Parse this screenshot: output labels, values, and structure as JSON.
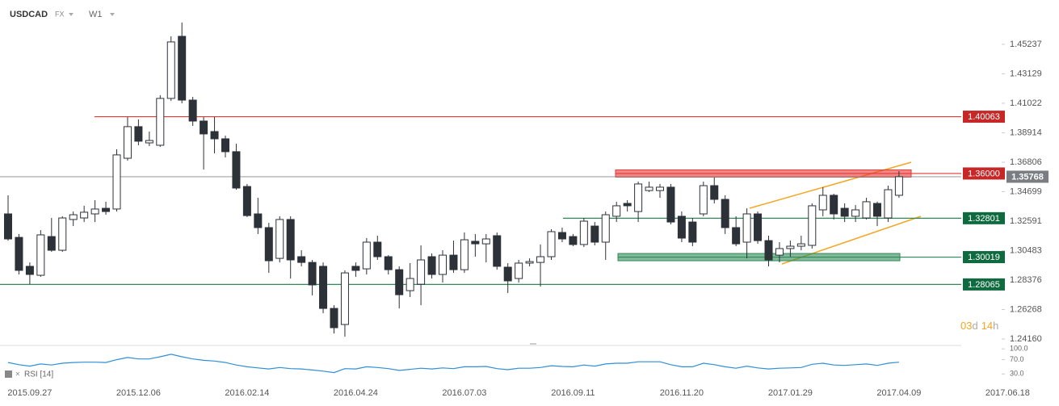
{
  "chart_data": {
    "type": "candlestick",
    "symbol": "USDCAD",
    "market": "FX",
    "timeframe": "W1",
    "countdown": [
      "03",
      "d",
      "14",
      "h"
    ],
    "categories": [
      null,
      null,
      "2015.09.27",
      null,
      null,
      null,
      null,
      null,
      null,
      null,
      null,
      null,
      "2015.12.06",
      null,
      null,
      null,
      null,
      null,
      null,
      null,
      null,
      null,
      "2016.02.14",
      null,
      null,
      null,
      null,
      null,
      null,
      null,
      null,
      null,
      "2016.04.24",
      null,
      null,
      null,
      null,
      null,
      null,
      null,
      null,
      null,
      "2016.07.03",
      null,
      null,
      null,
      null,
      null,
      null,
      null,
      null,
      null,
      "2016.09.11",
      null,
      null,
      null,
      null,
      null,
      null,
      null,
      null,
      null,
      "2016.11.20",
      null,
      null,
      null,
      null,
      null,
      null,
      null,
      null,
      null,
      "2017.01.29",
      null,
      null,
      null,
      null,
      null,
      null,
      null,
      null,
      null,
      "2017.04.09",
      null,
      null,
      null,
      null,
      null,
      null,
      null,
      null,
      null,
      "2017.06.18"
    ],
    "open": [
      1.3311,
      1.3143,
      1.2936,
      1.2872,
      1.3149,
      1.3051,
      1.3271,
      1.3282,
      1.3311,
      1.3351,
      1.3346,
      1.3709,
      1.3935,
      1.3819,
      1.3802,
      1.4137,
      1.4581,
      1.4125,
      1.3975,
      1.39,
      1.3848,
      1.3756,
      1.3507,
      1.3311,
      1.3213,
      1.2993,
      1.3271,
      1.3005,
      1.2964,
      1.2936,
      1.2635,
      1.252,
      1.2936,
      1.2918,
      1.3109,
      1.3005,
      1.2912,
      1.2762,
      1.2808,
      1.3005,
      1.2878,
      1.3016,
      1.2912,
      1.3115,
      1.3097,
      1.3155,
      1.293,
      1.2849,
      1.2959,
      1.2964,
      1.3005,
      1.3178,
      1.3149,
      1.3092,
      1.3224,
      1.3109,
      1.3294,
      1.3386,
      1.3328,
      1.3478,
      1.3478,
      1.3502,
      1.3294,
      1.3253,
      1.3311,
      1.3513,
      1.3415,
      1.3213,
      1.3109,
      1.3311,
      1.312,
      1.3016,
      1.3063,
      1.308,
      1.3086,
      1.334,
      1.3444,
      1.3351,
      1.3294,
      1.3282,
      1.3386,
      1.3282,
      1.3444,
      null,
      null,
      null,
      null,
      null,
      null,
      null,
      null,
      null,
      null
    ],
    "close": [
      1.3132,
      1.2907,
      1.2878,
      1.3161,
      1.3051,
      1.3282,
      1.3305,
      1.3323,
      1.3346,
      1.3328,
      1.3733,
      1.3935,
      1.3831,
      1.3836,
      1.4137,
      1.4541,
      1.4125,
      1.3975,
      1.3883,
      1.3848,
      1.3756,
      1.3496,
      1.3299,
      1.3213,
      1.2976,
      1.3271,
      1.2982,
      1.2964,
      1.2803,
      1.2635,
      1.2497,
      1.2889,
      1.2907,
      1.3109,
      1.3005,
      1.2912,
      1.2733,
      1.2849,
      1.2982,
      1.2878,
      1.3016,
      1.2912,
      1.3126,
      1.3097,
      1.3132,
      1.2936,
      1.2832,
      1.2959,
      1.297,
      1.3005,
      1.3184,
      1.3132,
      1.3092,
      1.3259,
      1.3109,
      1.3305,
      1.3369,
      1.3369,
      1.3525,
      1.3502,
      1.3502,
      1.3253,
      1.3138,
      1.3109,
      1.3513,
      1.3415,
      1.3213,
      1.3097,
      1.3311,
      1.312,
      1.2982,
      1.3063,
      1.308,
      1.3097,
      1.3369,
      1.3444,
      1.3311,
      1.3294,
      1.334,
      1.3398,
      1.3294,
      1.3484,
      1.3577,
      null,
      null,
      null,
      null,
      null,
      null,
      null,
      null,
      null,
      null
    ],
    "high": [
      1.3444,
      1.3167,
      1.2964,
      1.3195,
      1.3282,
      1.3294,
      1.3328,
      1.3369,
      1.3409,
      1.3398,
      1.3773,
      1.4004,
      1.3987,
      1.39,
      1.416,
      1.4581,
      1.468,
      1.4148,
      1.4004,
      1.4004,
      1.3871,
      1.3813,
      1.3525,
      1.3426,
      1.3247,
      1.3294,
      1.3294,
      1.3051,
      1.2982,
      1.2964,
      1.2658,
      1.2907,
      1.2964,
      1.3138,
      1.3155,
      1.3016,
      1.2936,
      1.2959,
      1.3086,
      1.3028,
      1.3051,
      1.312,
      1.3178,
      1.3167,
      1.3167,
      1.3178,
      1.2959,
      1.2982,
      1.2993,
      1.3092,
      1.3201,
      1.3213,
      1.3167,
      1.3282,
      1.3253,
      1.3328,
      1.3398,
      1.3409,
      1.3542,
      1.3542,
      1.3525,
      1.3525,
      1.3328,
      1.3282,
      1.3542,
      1.3571,
      1.3444,
      1.3294,
      1.3351,
      1.3328,
      1.3155,
      1.3109,
      1.312,
      1.3155,
      1.3386,
      1.3502,
      1.3455,
      1.3386,
      1.3374,
      1.3426,
      1.3398,
      1.3513,
      1.3617,
      null,
      null,
      null,
      null,
      null,
      null,
      null,
      null,
      null,
      null
    ],
    "low": [
      1.312,
      1.2878,
      1.2808,
      1.2861,
      1.304,
      1.304,
      1.3224,
      1.3253,
      1.3253,
      1.3305,
      1.3328,
      1.3692,
      1.3802,
      1.3796,
      1.379,
      1.4119,
      1.4102,
      1.394,
      1.3629,
      1.3744,
      1.3715,
      1.3484,
      1.3288,
      1.3167,
      1.2889,
      1.2964,
      1.2849,
      1.2936,
      1.2728,
      1.2601,
      1.2456,
      1.2433,
      1.2861,
      1.2878,
      1.2982,
      1.2878,
      1.2635,
      1.2716,
      1.2658,
      1.2849,
      1.282,
      1.2889,
      1.2889,
      1.3005,
      1.2964,
      1.2912,
      1.2745,
      1.282,
      1.2936,
      1.2791,
      1.2982,
      1.3109,
      1.308,
      1.3074,
      1.3086,
      1.2982,
      1.3253,
      1.3328,
      1.3253,
      1.3467,
      1.3426,
      1.3236,
      1.3109,
      1.308,
      1.3294,
      1.3386,
      1.3167,
      1.308,
      1.2993,
      1.3097,
      1.2936,
      1.2964,
      1.3005,
      1.3051,
      1.3063,
      1.3294,
      1.3271,
      1.3253,
      1.3253,
      1.3271,
      1.3224,
      1.3253,
      1.3426,
      null,
      null,
      null,
      null,
      null,
      null,
      null,
      null,
      null,
      null
    ],
    "bull_color": "#ffffff",
    "bear_color": "#2d3138",
    "ylim": [
      1.237,
      1.4812
    ],
    "yticks": [
      1.45237,
      1.43129,
      1.41022,
      1.38914,
      1.36806,
      1.34699,
      1.32591,
      1.30483,
      1.28376,
      1.26268,
      {
        "value": 1.2416,
        "label": "1.24160"
      }
    ],
    "levels": [
      {
        "value": 1.40063,
        "color": "#e53935"
      },
      {
        "value": 1.36,
        "label": "1.36000",
        "color": "#e53935",
        "zone": true
      },
      {
        "value": 1.32801,
        "color": "#2e8b57"
      },
      {
        "value": 1.30019,
        "color": "#2e8b57",
        "zone": true
      },
      {
        "value": 1.28065,
        "color": "#2e8b57"
      }
    ],
    "last_price": {
      "value": 1.35768,
      "color": "#7a7d82"
    },
    "rsi": {
      "name": "RSI [14]",
      "color": "#2f8fd8",
      "ylim": [
        15,
        105
      ],
      "yticks": [
        {
          "value": 100,
          "label": "100.0"
        },
        {
          "value": 70,
          "label": "70.0"
        },
        {
          "value": 30,
          "label": "30.0"
        }
      ],
      "values": [
        62,
        56,
        52,
        58,
        55,
        60,
        62,
        63,
        63,
        62,
        70,
        76,
        72,
        72,
        78,
        85,
        78,
        72,
        68,
        66,
        62,
        55,
        50,
        47,
        44,
        48,
        45,
        44,
        41,
        38,
        34,
        45,
        44,
        50,
        48,
        45,
        40,
        43,
        46,
        44,
        47,
        45,
        50,
        50,
        51,
        45,
        42,
        46,
        46,
        48,
        53,
        51,
        50,
        55,
        52,
        58,
        60,
        60,
        64,
        64,
        64,
        56,
        50,
        50,
        60,
        56,
        50,
        46,
        52,
        47,
        44,
        46,
        47,
        48,
        57,
        60,
        55,
        54,
        56,
        58,
        54,
        60,
        63,
        null,
        null,
        null,
        null,
        null,
        null,
        null,
        null,
        null,
        null
      ]
    }
  }
}
